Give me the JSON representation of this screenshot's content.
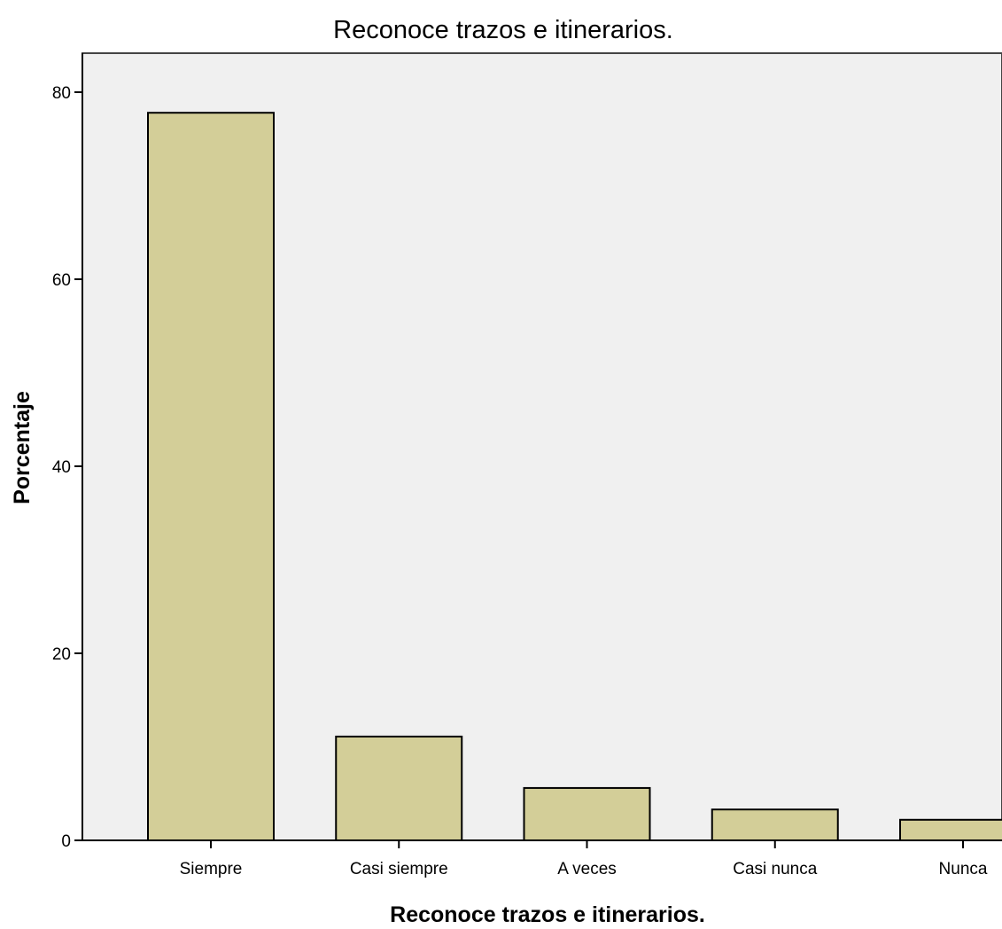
{
  "chart_data": {
    "type": "bar",
    "title": "Reconoce trazos e itinerarios.",
    "xlabel": "Reconoce trazos e itinerarios.",
    "ylabel": "Porcentaje",
    "categories": [
      "Siempre",
      "Casi siempre",
      "A veces",
      "Casi nunca",
      "Nunca"
    ],
    "values": [
      77.8,
      11.1,
      5.6,
      3.3,
      2.2
    ],
    "ylim": [
      0,
      84
    ],
    "yticks": [
      0,
      20,
      40,
      60,
      80
    ],
    "grid": false,
    "legend": "none",
    "colors": {
      "bar_fill": "#D3CE98",
      "bar_stroke": "#000000",
      "plot_background": "#F0F0F0",
      "axis": "#000000"
    }
  }
}
